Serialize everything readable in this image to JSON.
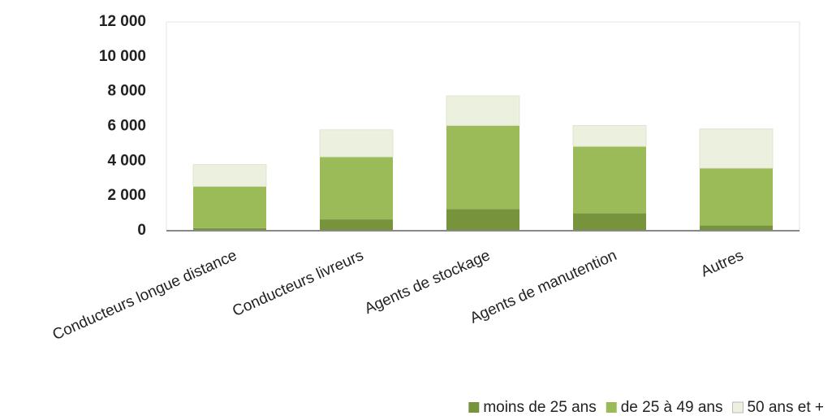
{
  "chart_data": {
    "type": "stacked_bar",
    "categories": [
      "Conducteurs longue distance",
      "Conducteurs livreurs",
      "Agents de stockage",
      "Agents de manutention",
      "Autres"
    ],
    "series": [
      {
        "name": "moins de 25 ans",
        "color": "#77933c",
        "values": [
          150,
          650,
          1250,
          1000,
          300
        ]
      },
      {
        "name": "de 25 à 49 ans",
        "color": "#9bbb59",
        "values": [
          2400,
          3600,
          4800,
          3850,
          3300
        ]
      },
      {
        "name": "50 ans et +",
        "color": "#ebf1de",
        "values": [
          1250,
          1550,
          1700,
          1200,
          2250
        ]
      }
    ],
    "ylim": [
      0,
      12000
    ],
    "yticks": [
      0,
      {
        "value": 2000,
        "label": "2 000"
      },
      {
        "value": 4000,
        "label": "4 000"
      },
      {
        "value": 6000,
        "label": "6 000"
      },
      {
        "value": 8000,
        "label": "8 000"
      },
      {
        "value": 10000,
        "label": "10 000"
      },
      {
        "value": 12000,
        "label": "12 000"
      }
    ],
    "legend": "bottom-right"
  }
}
